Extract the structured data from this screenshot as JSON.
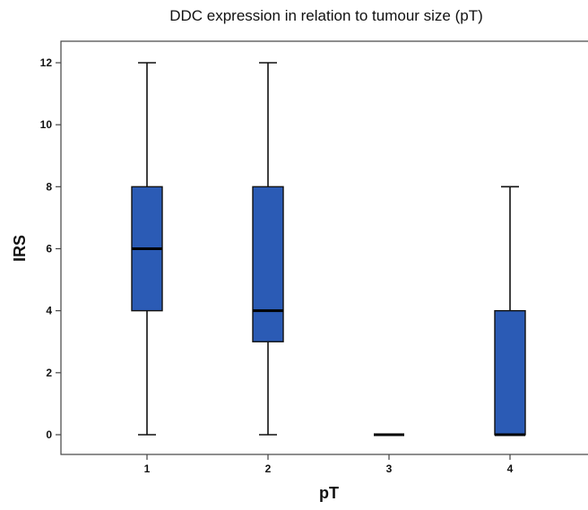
{
  "chart_data": {
    "type": "boxplot",
    "title": "DDC expression in relation to tumour size (pT)",
    "xlabel": "pT",
    "ylabel": "IRS",
    "categories": [
      "1",
      "2",
      "3",
      "4"
    ],
    "ylim": [
      0,
      12
    ],
    "yticks": [
      0,
      2,
      4,
      6,
      8,
      10,
      12
    ],
    "yticks_labels": [
      "0",
      "2",
      "4",
      "6",
      "8",
      "10",
      "12"
    ],
    "boxes": [
      {
        "category": "1",
        "min": 0,
        "q1": 4,
        "median": 6,
        "q3": 8,
        "max": 12
      },
      {
        "category": "2",
        "min": 0,
        "q1": 3,
        "median": 4,
        "q3": 8,
        "max": 12
      },
      {
        "category": "3",
        "min": 0,
        "q1": 0,
        "median": 0,
        "q3": 0,
        "max": 0
      },
      {
        "category": "4",
        "min": 0,
        "q1": 0,
        "median": 0,
        "q3": 4,
        "max": 8
      }
    ],
    "box_color": "#2b5bb5",
    "grid": false
  }
}
